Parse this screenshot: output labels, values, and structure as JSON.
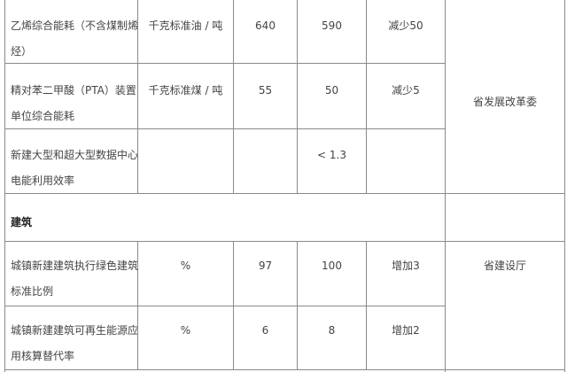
{
  "rows": [
    {
      "indicator": [
        "乙烯综合能耗（不含煤制烯",
        "烃）"
      ],
      "unit": "千克标准油 / 吨",
      "base": "640",
      "target": "590",
      "change": "减少50"
    },
    {
      "indicator": [
        "精对苯二甲酸（PTA）装置",
        "单位综合能耗"
      ],
      "unit": "千克标准煤 / 吨",
      "base": "55",
      "target": "50",
      "change": "减少5"
    },
    {
      "indicator": [
        "新建大型和超大型数据中心",
        "电能利用效率"
      ],
      "unit": "",
      "base": "",
      "target": "< 1.3",
      "change": ""
    },
    {
      "indicator": [
        "城镇新建建筑执行绿色建筑",
        "标准比例"
      ],
      "unit": "%",
      "base": "97",
      "target": "100",
      "change": "增加3"
    },
    {
      "indicator": [
        "城镇新建建筑可再生能源应",
        "用核算替代率"
      ],
      "unit": "%",
      "base": "6",
      "target": "8",
      "change": "增加2"
    }
  ],
  "departments": {
    "ndrc": "省发展改革委",
    "construction": "省建设厅"
  },
  "section": "建筑"
}
